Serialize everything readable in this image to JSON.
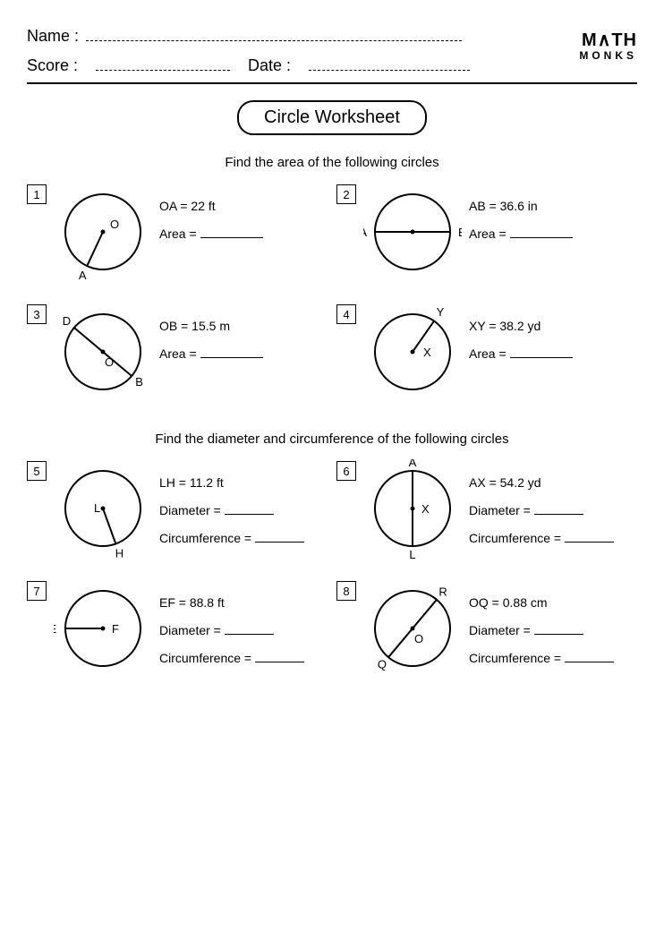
{
  "header": {
    "name_label": "Name :",
    "score_label": "Score :",
    "date_label": "Date :",
    "logo_top": "M∧TH",
    "logo_bottom": "MONKS"
  },
  "title": "Circle Worksheet",
  "section1": {
    "subtitle": "Find the area of the following circles",
    "problems": [
      {
        "num": "1",
        "given_label": "OA = 22 ft",
        "answer_label": "Area =",
        "circle": {
          "type": "radius",
          "center_label": "O",
          "center_pos": "ne",
          "edge_label": "A",
          "angle_deg": 115,
          "stroke": "#000000"
        }
      },
      {
        "num": "2",
        "given_label": "AB = 36.6 in",
        "answer_label": "Area =",
        "circle": {
          "type": "diameter_h",
          "left_label": "A",
          "right_label": "B",
          "stroke": "#000000"
        }
      },
      {
        "num": "3",
        "given_label": "OB = 15.5 m",
        "answer_label": "Area =",
        "circle": {
          "type": "diameter_diag",
          "center_label": "O",
          "p1_label": "D",
          "p1_ang": -140,
          "p2_label": "B",
          "p2_ang": 40,
          "stroke": "#000000"
        }
      },
      {
        "num": "4",
        "given_label": "XY = 38.2 yd",
        "answer_label": "Area =",
        "circle": {
          "type": "radius",
          "center_label": "X",
          "center_pos": "e",
          "edge_label": "Y",
          "angle_deg": -55,
          "stroke": "#000000"
        }
      }
    ]
  },
  "section2": {
    "subtitle": "Find the diameter and circumference of the following circles",
    "problems": [
      {
        "num": "5",
        "given_label": "LH = 11.2 ft",
        "ans1_label": "Diameter =",
        "ans2_label": "Circumference  =",
        "circle": {
          "type": "radius",
          "center_label": "L",
          "center_pos": "w",
          "edge_label": "H",
          "angle_deg": 70,
          "stroke": "#000000"
        }
      },
      {
        "num": "6",
        "given_label": "AX = 54.2 yd",
        "ans1_label": "Diameter =",
        "ans2_label": "Circumference  =",
        "circle": {
          "type": "diameter_v",
          "top_label": "A",
          "bottom_label": "L",
          "center_label": "X",
          "stroke": "#000000"
        }
      },
      {
        "num": "7",
        "given_label": "EF =  88.8 ft",
        "ans1_label": "Diameter =",
        "ans2_label": "Circumference  =",
        "circle": {
          "type": "radius_h",
          "center_label": "F",
          "edge_label": "E",
          "stroke": "#000000"
        }
      },
      {
        "num": "8",
        "given_label": "OQ = 0.88 cm",
        "ans1_label": "Diameter =",
        "ans2_label": "Circumference  =",
        "circle": {
          "type": "diameter_diag",
          "center_label": "O",
          "p1_label": "R",
          "p1_ang": -50,
          "p2_label": "Q",
          "p2_ang": 130,
          "stroke": "#000000"
        }
      }
    ]
  },
  "style": {
    "circle_radius": 42,
    "stroke_width": 2,
    "font_size_label": 13
  }
}
